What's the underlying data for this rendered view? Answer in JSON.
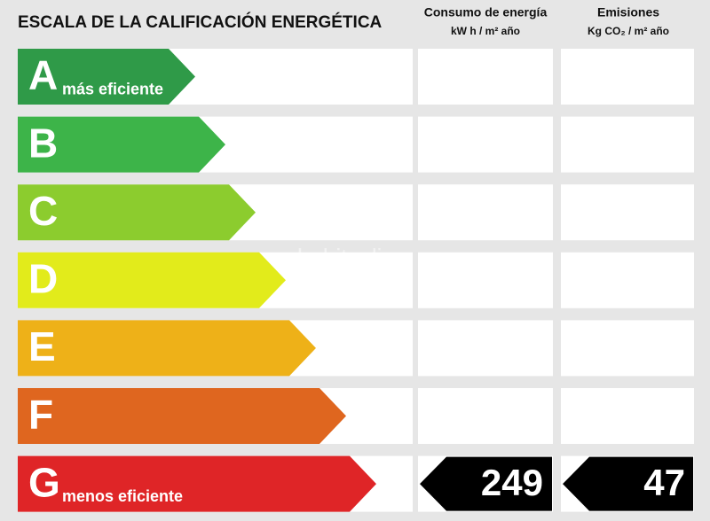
{
  "title": "ESCALA DE LA CALIFICACIÓN ENERGÉTICA",
  "columns": [
    {
      "title": "Consumo de energía",
      "unit": "kW h / m² año"
    },
    {
      "title": "Emisiones",
      "unit": "Kg CO₂ / m² año"
    }
  ],
  "ratings": [
    {
      "letter": "A",
      "label": "más eficiente",
      "color": "#2f9a48"
    },
    {
      "letter": "B",
      "label": null,
      "color": "#3db449"
    },
    {
      "letter": "C",
      "label": null,
      "color": "#8ccc2e"
    },
    {
      "letter": "D",
      "label": null,
      "color": "#e2eb1b"
    },
    {
      "letter": "E",
      "label": null,
      "color": "#eeb118"
    },
    {
      "letter": "F",
      "label": null,
      "color": "#df661f"
    },
    {
      "letter": "G",
      "label": "menos eficiente",
      "color": "#df2527",
      "consumption": 249,
      "emissions": 47
    }
  ],
  "watermark": "habitaclia"
}
